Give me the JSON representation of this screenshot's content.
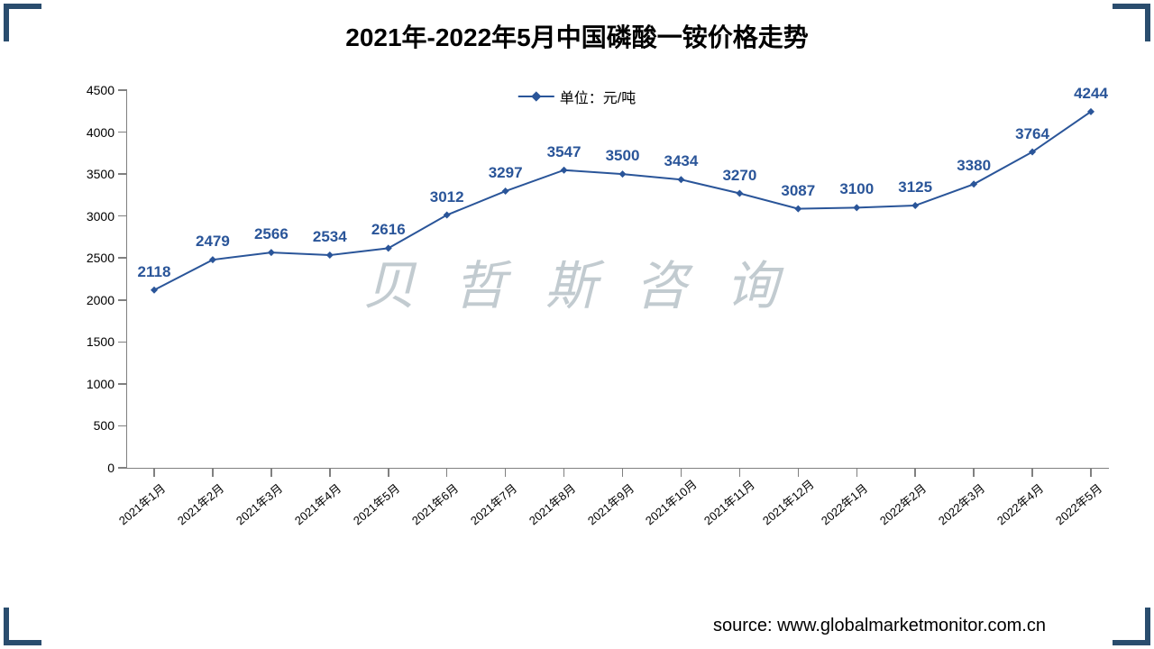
{
  "title": "2021年-2022年5月中国磷酸一铵价格走势",
  "legend_label": "单位：元/吨",
  "watermark_text": "贝 哲 斯 咨 询",
  "source_text": "source: www.globalmarketmonitor.com.cn",
  "chart": {
    "type": "line",
    "line_color": "#2a5599",
    "line_width": 2,
    "marker_style": "diamond",
    "marker_size": 8,
    "data_label_color": "#2a5599",
    "data_label_fontsize": 17,
    "axis_color": "#808080",
    "background_color": "#ffffff",
    "ylim": [
      0,
      4500
    ],
    "ytick_step": 500,
    "yticks": [
      0,
      500,
      1000,
      1500,
      2000,
      2500,
      3000,
      3500,
      4000,
      4500
    ],
    "categories": [
      "2021年1月",
      "2021年2月",
      "2021年3月",
      "2021年4月",
      "2021年5月",
      "2021年6月",
      "2021年7月",
      "2021年8月",
      "2021年9月",
      "2021年10月",
      "2021年11月",
      "2021年12月",
      "2022年1月",
      "2022年2月",
      "2022年3月",
      "2022年4月",
      "2022年5月"
    ],
    "values": [
      2118,
      2479,
      2566,
      2534,
      2616,
      3012,
      3297,
      3547,
      3500,
      3434,
      3270,
      3087,
      3100,
      3125,
      3380,
      3764,
      4244
    ]
  },
  "frame_corner_color": "#2a4d6e"
}
